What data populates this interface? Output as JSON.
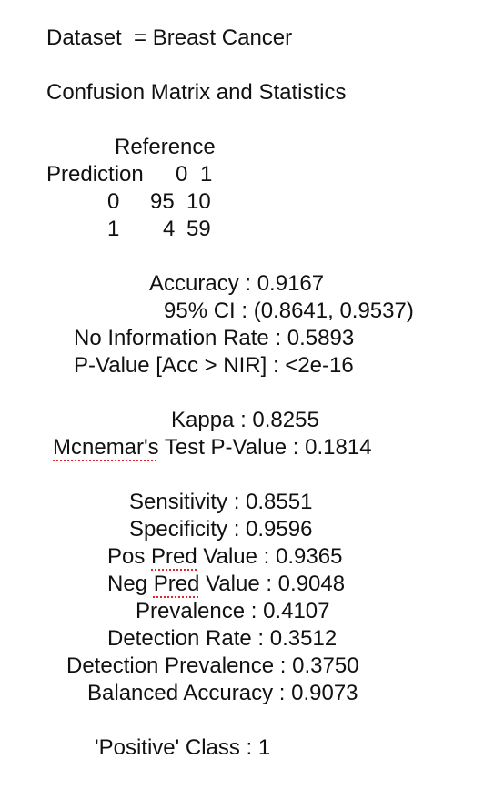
{
  "dataset_line": "Dataset  = Breast Cancer",
  "heading": "Confusion Matrix and Statistics",
  "matrix": {
    "reference_label": "Reference",
    "prediction_label": "Prediction",
    "col_header_0": "0",
    "col_header_1": "1",
    "row_0": {
      "label": "0",
      "v0": "95",
      "v1": "10"
    },
    "row_1": {
      "label": "1",
      "v0": "4",
      "v1": "59"
    }
  },
  "stats": {
    "accuracy": "Accuracy : 0.9167",
    "ci": "95% CI : (0.8641, 0.9537)",
    "nir": "No Information Rate : 0.5893",
    "pvalue": "P-Value [Acc > NIR] : <2e-16",
    "kappa": "Kappa : 0.8255",
    "mcnemar_word": "Mcnemar's",
    "mcnemar_rest": " Test P-Value : 0.1814",
    "sensitivity": "Sensitivity : 0.8551",
    "specificity": "Specificity : 0.9596",
    "ppv_prefix": "Pos ",
    "ppv_word": "Pred",
    "ppv_rest": " Value : 0.9365",
    "npv_prefix": "Neg ",
    "npv_word": "Pred",
    "npv_rest": " Value : 0.9048",
    "prevalence": "Prevalence : 0.4107",
    "detection_rate": "Detection Rate : 0.3512",
    "detection_prevalence": "Detection Prevalence : 0.3750",
    "balanced_accuracy": "Balanced Accuracy : 0.9073"
  },
  "positive_class": "'Positive' Class : 1",
  "colors": {
    "text": "#111111",
    "spellcheck_underline": "#e0262b"
  }
}
